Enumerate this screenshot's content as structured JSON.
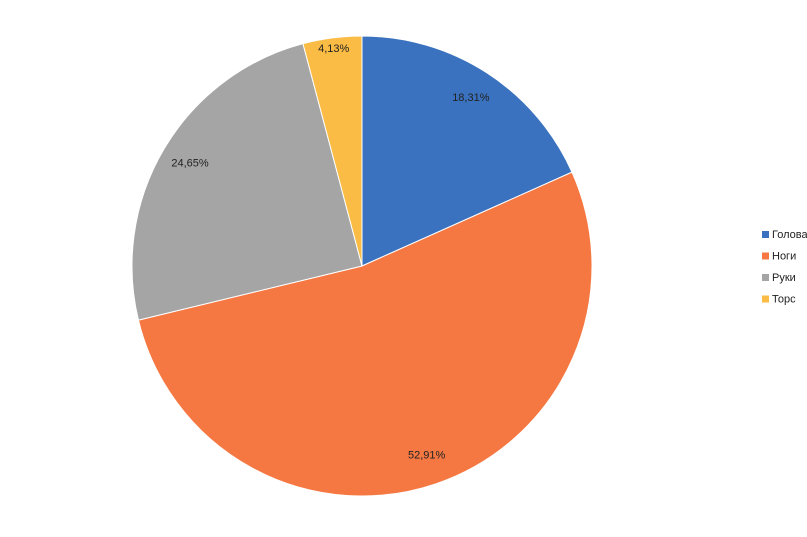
{
  "chart_data": {
    "type": "pie",
    "categories": [
      "Голова",
      "Ноги",
      "Руки",
      "Торс"
    ],
    "values": [
      18.31,
      52.91,
      24.65,
      4.13
    ],
    "value_labels": [
      "18,31%",
      "52,91%",
      "24,65%",
      "4,13%"
    ],
    "colors": [
      "#3a72bf",
      "#f57842",
      "#a5a5a5",
      "#fbbc45"
    ],
    "legend": "right"
  }
}
